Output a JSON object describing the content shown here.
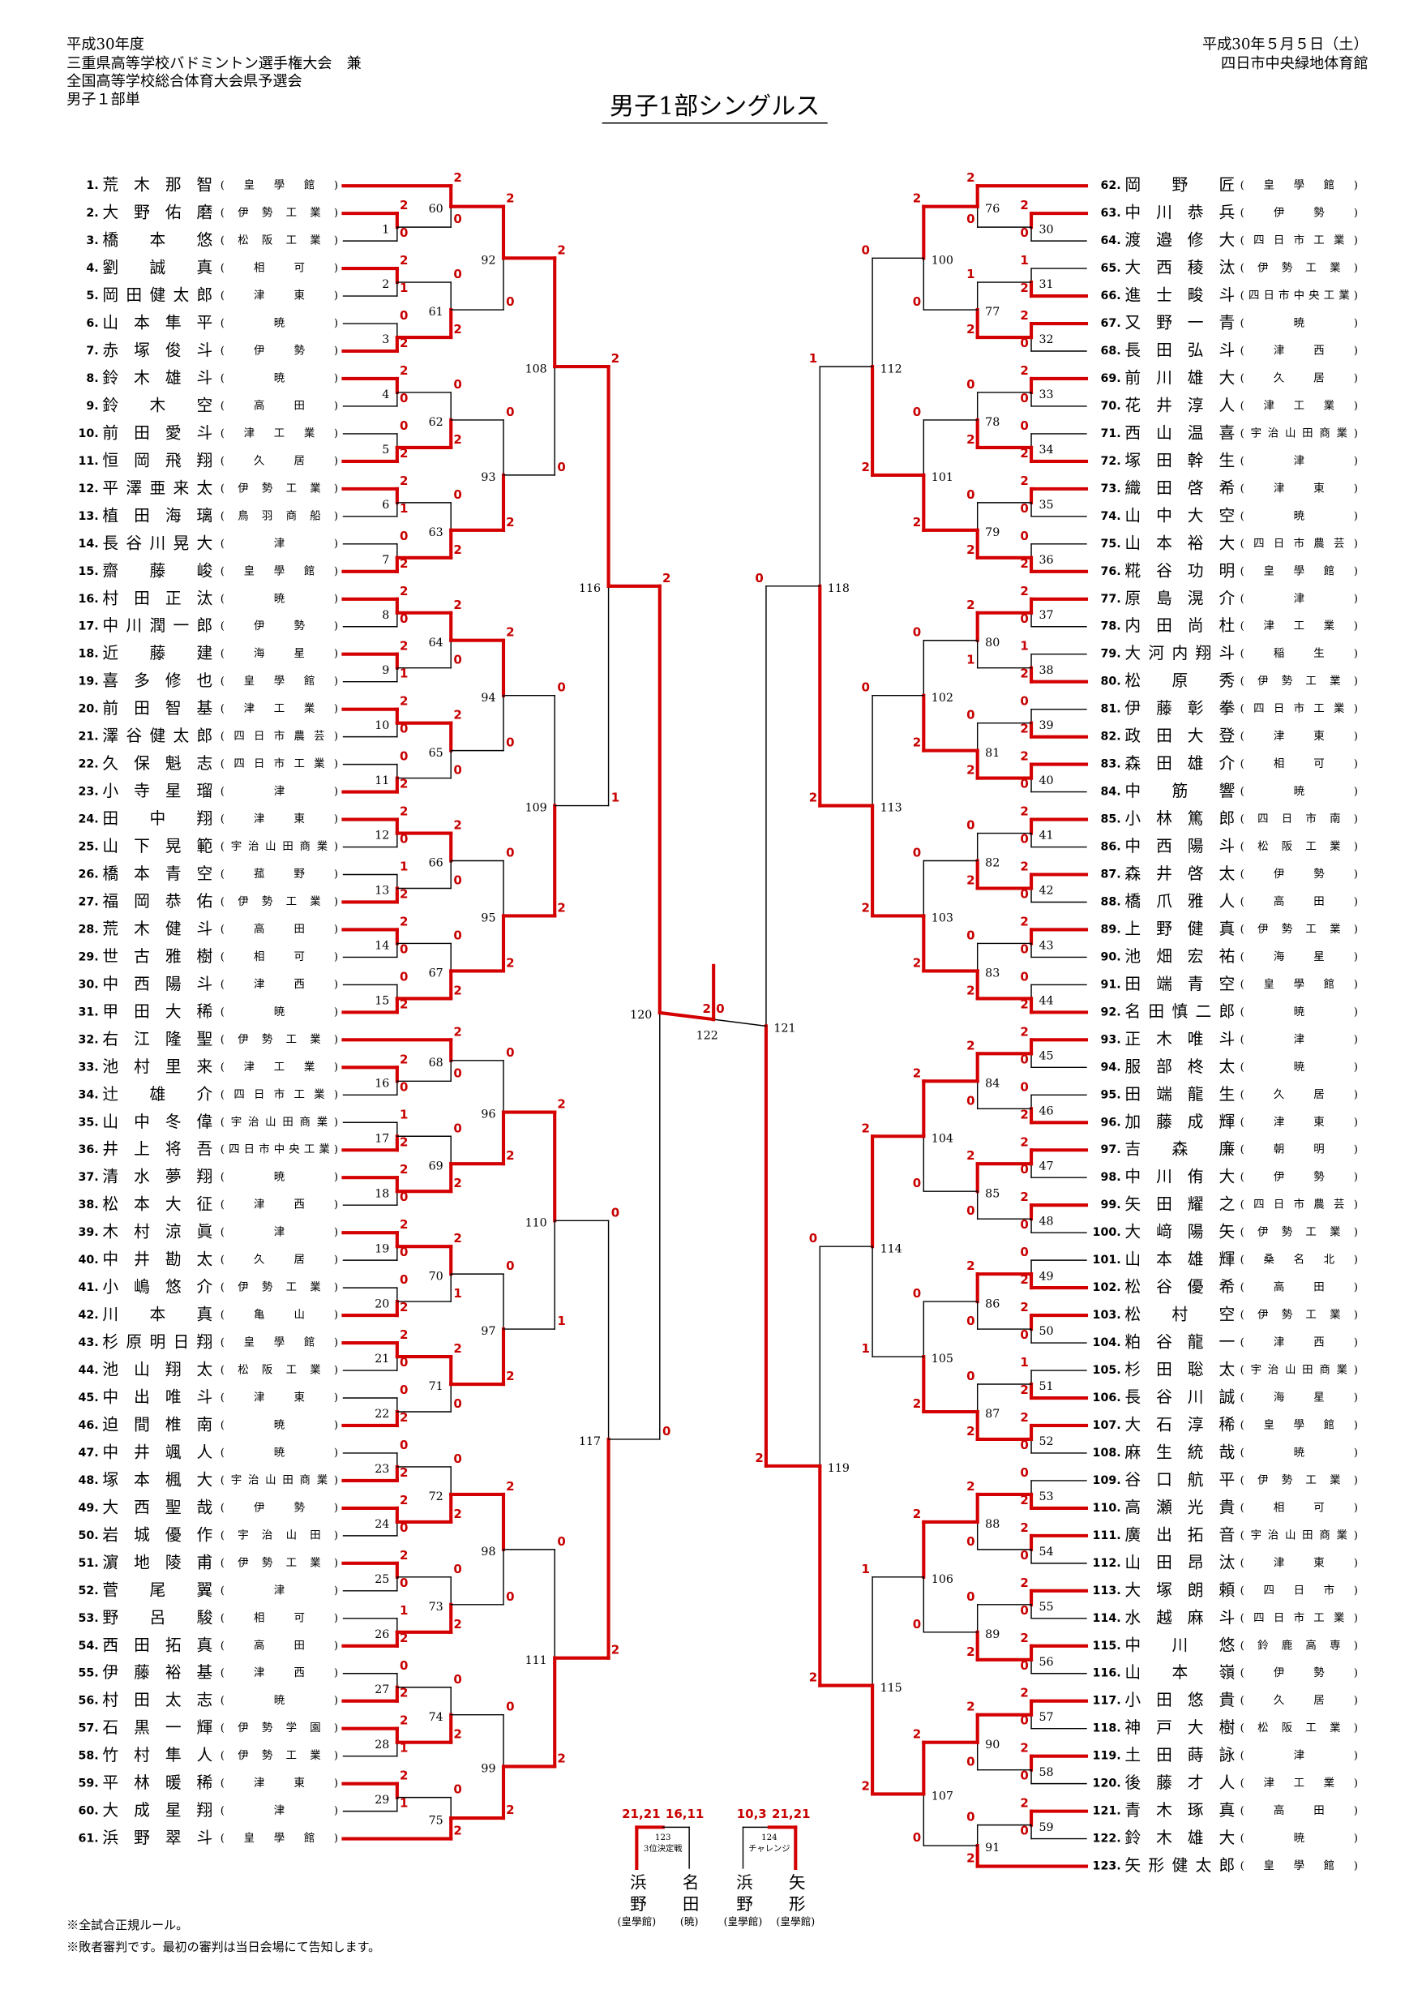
{
  "header": {
    "lines": [
      "平成30年度",
      "三重県高等学校バドミントン選手権大会　兼",
      "全国高等学校総合体育大会県予選会",
      "男子１部単"
    ],
    "date": "平成30年５月５日（土）",
    "venue": "四日市中央緑地体育館",
    "title": "男子1部シングルス"
  },
  "players": [
    [
      "1.",
      "荒木那智",
      "(皇學館)"
    ],
    [
      "2.",
      "大野佑磨",
      "(伊勢工業)"
    ],
    [
      "3.",
      "橋本悠",
      "(松阪工業)"
    ],
    [
      "4.",
      "劉誠真",
      "(相可)"
    ],
    [
      "5.",
      "岡田健太郎",
      "(津東)"
    ],
    [
      "6.",
      "山本隼平",
      "(暁)"
    ],
    [
      "7.",
      "赤塚俊斗",
      "(伊勢)"
    ],
    [
      "8.",
      "鈴木雄斗",
      "(暁)"
    ],
    [
      "9.",
      "鈴木空",
      "(高田)"
    ],
    [
      "10.",
      "前田愛斗",
      "(津工業)"
    ],
    [
      "11.",
      "恒岡飛翔",
      "(久居)"
    ],
    [
      "12.",
      "平澤亜来太",
      "(伊勢工業)"
    ],
    [
      "13.",
      "植田海璃",
      "(鳥羽商船)"
    ],
    [
      "14.",
      "長谷川晃大",
      "(津)"
    ],
    [
      "15.",
      "齋藤峻",
      "(皇學館)"
    ],
    [
      "16.",
      "村田正汰",
      "(暁)"
    ],
    [
      "17.",
      "中川潤一郎",
      "(伊勢)"
    ],
    [
      "18.",
      "近藤建",
      "(海星)"
    ],
    [
      "19.",
      "喜多修也",
      "(皇學館)"
    ],
    [
      "20.",
      "前田智基",
      "(津工業)"
    ],
    [
      "21.",
      "澤谷健太郎",
      "(四日市農芸)"
    ],
    [
      "22.",
      "久保魁志",
      "(四日市工業)"
    ],
    [
      "23.",
      "小寺星瑠",
      "(津)"
    ],
    [
      "24.",
      "田中翔",
      "(津東)"
    ],
    [
      "25.",
      "山下晃範",
      "(宇治山田商業)"
    ],
    [
      "26.",
      "橋本青空",
      "(菰野)"
    ],
    [
      "27.",
      "福岡恭佑",
      "(伊勢工業)"
    ],
    [
      "28.",
      "荒木健斗",
      "(高田)"
    ],
    [
      "29.",
      "世古雅樹",
      "(相可)"
    ],
    [
      "30.",
      "中西陽斗",
      "(津西)"
    ],
    [
      "31.",
      "甲田大稀",
      "(暁)"
    ],
    [
      "32.",
      "右江隆聖",
      "(伊勢工業)"
    ],
    [
      "33.",
      "池村里来",
      "(津工業)"
    ],
    [
      "34.",
      "辻雄介",
      "(四日市工業)"
    ],
    [
      "35.",
      "山中冬偉",
      "(宇治山田商業)"
    ],
    [
      "36.",
      "井上将吾",
      "(四日市中央工業)"
    ],
    [
      "37.",
      "清水夢翔",
      "(暁)"
    ],
    [
      "38.",
      "松本大征",
      "(津西)"
    ],
    [
      "39.",
      "木村涼眞",
      "(津)"
    ],
    [
      "40.",
      "中井勘太",
      "(久居)"
    ],
    [
      "41.",
      "小嶋悠介",
      "(伊勢工業)"
    ],
    [
      "42.",
      "川本真",
      "(亀山)"
    ],
    [
      "43.",
      "杉原明日翔",
      "(皇學館)"
    ],
    [
      "44.",
      "池山翔太",
      "(松阪工業)"
    ],
    [
      "45.",
      "中出唯斗",
      "(津東)"
    ],
    [
      "46.",
      "迫間椎南",
      "(暁)"
    ],
    [
      "47.",
      "中井颯人",
      "(暁)"
    ],
    [
      "48.",
      "塚本楓大",
      "(宇治山田商業)"
    ],
    [
      "49.",
      "大西聖哉",
      "(伊勢)"
    ],
    [
      "50.",
      "岩城優作",
      "(宇治山田)"
    ],
    [
      "51.",
      "濵地陵甫",
      "(伊勢工業)"
    ],
    [
      "52.",
      "菅尾翼",
      "(津)"
    ],
    [
      "53.",
      "野呂駿",
      "(相可)"
    ],
    [
      "54.",
      "西田拓真",
      "(高田)"
    ],
    [
      "55.",
      "伊藤裕基",
      "(津西)"
    ],
    [
      "56.",
      "村田太志",
      "(暁)"
    ],
    [
      "57.",
      "石黒一輝",
      "(伊勢学園)"
    ],
    [
      "58.",
      "竹村隼人",
      "(伊勢工業)"
    ],
    [
      "59.",
      "平林暖稀",
      "(津東)"
    ],
    [
      "60.",
      "大成星翔",
      "(津)"
    ],
    [
      "61.",
      "浜野翠斗",
      "(皇學館)"
    ],
    [
      "62.",
      "岡野匠",
      "(皇學館)"
    ],
    [
      "63.",
      "中川恭兵",
      "(伊勢)"
    ],
    [
      "64.",
      "渡邉修大",
      "(四日市工業)"
    ],
    [
      "65.",
      "大西稜汰",
      "(伊勢工業)"
    ],
    [
      "66.",
      "進士畯斗",
      "(四日市中央工業)"
    ],
    [
      "67.",
      "又野一青",
      "(暁)"
    ],
    [
      "68.",
      "長田弘斗",
      "(津西)"
    ],
    [
      "69.",
      "前川雄大",
      "(久居)"
    ],
    [
      "70.",
      "花井淳人",
      "(津工業)"
    ],
    [
      "71.",
      "西山温喜",
      "(宇治山田商業)"
    ],
    [
      "72.",
      "塚田幹生",
      "(津)"
    ],
    [
      "73.",
      "織田啓希",
      "(津東)"
    ],
    [
      "74.",
      "山中大空",
      "(暁)"
    ],
    [
      "75.",
      "山本裕大",
      "(四日市農芸)"
    ],
    [
      "76.",
      "糀谷功明",
      "(皇學館)"
    ],
    [
      "77.",
      "原島滉介",
      "(津)"
    ],
    [
      "78.",
      "内田尚杜",
      "(津工業)"
    ],
    [
      "79.",
      "大河内翔斗",
      "(稲生)"
    ],
    [
      "80.",
      "松原秀",
      "(伊勢工業)"
    ],
    [
      "81.",
      "伊藤彰拳",
      "(四日市工業)"
    ],
    [
      "82.",
      "政田大登",
      "(津東)"
    ],
    [
      "83.",
      "森田雄介",
      "(相可)"
    ],
    [
      "84.",
      "中筋響",
      "(暁)"
    ],
    [
      "85.",
      "小林篤郎",
      "(四日市南)"
    ],
    [
      "86.",
      "中西陽斗",
      "(松阪工業)"
    ],
    [
      "87.",
      "森井啓太",
      "(伊勢)"
    ],
    [
      "88.",
      "橋爪雅人",
      "(高田)"
    ],
    [
      "89.",
      "上野健真",
      "(伊勢工業)"
    ],
    [
      "90.",
      "池畑宏祐",
      "(海星)"
    ],
    [
      "91.",
      "田端青空",
      "(皇學館)"
    ],
    [
      "92.",
      "名田慎二郎",
      "(暁)"
    ],
    [
      "93.",
      "正木唯斗",
      "(津)"
    ],
    [
      "94.",
      "服部柊太",
      "(暁)"
    ],
    [
      "95.",
      "田端龍生",
      "(久居)"
    ],
    [
      "96.",
      "加藤成輝",
      "(津東)"
    ],
    [
      "97.",
      "吉森廉",
      "(朝明)"
    ],
    [
      "98.",
      "中川侑大",
      "(伊勢)"
    ],
    [
      "99.",
      "矢田耀之",
      "(四日市農芸)"
    ],
    [
      "100.",
      "大﨑陽矢",
      "(伊勢工業)"
    ],
    [
      "101.",
      "山本雄輝",
      "(桑名北)"
    ],
    [
      "102.",
      "松谷優希",
      "(高田)"
    ],
    [
      "103.",
      "松村空",
      "(伊勢工業)"
    ],
    [
      "104.",
      "粕谷龍一",
      "(津西)"
    ],
    [
      "105.",
      "杉田聡太",
      "(宇治山田商業)"
    ],
    [
      "106.",
      "長谷川誠",
      "(海星)"
    ],
    [
      "107.",
      "大石淳稀",
      "(皇學館)"
    ],
    [
      "108.",
      "麻生統哉",
      "(暁)"
    ],
    [
      "109.",
      "谷口航平",
      "(伊勢工業)"
    ],
    [
      "110.",
      "高瀬光貴",
      "(相可)"
    ],
    [
      "111.",
      "廣出拓音",
      "(宇治山田商業)"
    ],
    [
      "112.",
      "山田昂汰",
      "(津東)"
    ],
    [
      "113.",
      "大塚朗頼",
      "(四日市)"
    ],
    [
      "114.",
      "水越麻斗",
      "(四日市工業)"
    ],
    [
      "115.",
      "中川悠",
      "(鈴鹿高専)"
    ],
    [
      "116.",
      "山本嶺",
      "(伊勢)"
    ],
    [
      "117.",
      "小田悠貴",
      "(久居)"
    ],
    [
      "118.",
      "神戸大樹",
      "(松阪工業)"
    ],
    [
      "119.",
      "土田蒔詠",
      "(津)"
    ],
    [
      "120.",
      "後藤才人",
      "(津工業)"
    ],
    [
      "121.",
      "青木琢真",
      "(高田)"
    ],
    [
      "122.",
      "鈴木雄大",
      "(暁)"
    ],
    [
      "123.",
      "矢形健太郎",
      "(皇學館)"
    ]
  ],
  "matches": [
    [
      1,
      2,
      0
    ],
    [
      2,
      2,
      1
    ],
    [
      3,
      0,
      2
    ],
    [
      4,
      2,
      0
    ],
    [
      5,
      0,
      2
    ],
    [
      6,
      2,
      1
    ],
    [
      7,
      0,
      2
    ],
    [
      8,
      2,
      0
    ],
    [
      9,
      2,
      1
    ],
    [
      10,
      2,
      0
    ],
    [
      11,
      0,
      2
    ],
    [
      12,
      2,
      0
    ],
    [
      13,
      1,
      2
    ],
    [
      14,
      2,
      0
    ],
    [
      15,
      0,
      2
    ],
    [
      16,
      2,
      0
    ],
    [
      17,
      1,
      2
    ],
    [
      18,
      2,
      0
    ],
    [
      19,
      2,
      0
    ],
    [
      20,
      0,
      2
    ],
    [
      21,
      2,
      0
    ],
    [
      22,
      0,
      2
    ],
    [
      23,
      0,
      2
    ],
    [
      24,
      2,
      0
    ],
    [
      25,
      2,
      0
    ],
    [
      26,
      1,
      2
    ],
    [
      27,
      0,
      2
    ],
    [
      28,
      2,
      1
    ],
    [
      29,
      2,
      1
    ],
    [
      30,
      2,
      0
    ],
    [
      31,
      1,
      2
    ],
    [
      32,
      2,
      0
    ],
    [
      33,
      2,
      0
    ],
    [
      34,
      0,
      2
    ],
    [
      35,
      2,
      0
    ],
    [
      36,
      0,
      2
    ],
    [
      37,
      2,
      0
    ],
    [
      38,
      1,
      2
    ],
    [
      39,
      0,
      2
    ],
    [
      40,
      2,
      0
    ],
    [
      41,
      2,
      0
    ],
    [
      42,
      2,
      0
    ],
    [
      43,
      2,
      0
    ],
    [
      44,
      0,
      2
    ],
    [
      45,
      2,
      0
    ],
    [
      46,
      0,
      2
    ],
    [
      47,
      2,
      0
    ],
    [
      48,
      2,
      0
    ],
    [
      49,
      0,
      2
    ],
    [
      50,
      2,
      0
    ],
    [
      51,
      1,
      2
    ],
    [
      52,
      2,
      0
    ],
    [
      53,
      0,
      2
    ],
    [
      54,
      2,
      0
    ],
    [
      55,
      2,
      0
    ],
    [
      56,
      2,
      0
    ],
    [
      57,
      2,
      0
    ],
    [
      58,
      2,
      0
    ],
    [
      59,
      2,
      0
    ],
    [
      60,
      2,
      0
    ],
    [
      61,
      0,
      2
    ],
    [
      62,
      0,
      2
    ],
    [
      63,
      0,
      2
    ],
    [
      64,
      2,
      0
    ],
    [
      65,
      2,
      0
    ],
    [
      66,
      2,
      0
    ],
    [
      67,
      0,
      2
    ],
    [
      68,
      2,
      0
    ],
    [
      69,
      0,
      2
    ],
    [
      70,
      2,
      1
    ],
    [
      71,
      2,
      0
    ],
    [
      72,
      0,
      2
    ],
    [
      73,
      0,
      2
    ],
    [
      74,
      0,
      2
    ],
    [
      75,
      0,
      2
    ],
    [
      76,
      2,
      0
    ],
    [
      77,
      1,
      2
    ],
    [
      78,
      0,
      2
    ],
    [
      79,
      0,
      2
    ],
    [
      80,
      2,
      1
    ],
    [
      81,
      0,
      2
    ],
    [
      82,
      0,
      2
    ],
    [
      83,
      0,
      2
    ],
    [
      84,
      2,
      0
    ],
    [
      85,
      2,
      0
    ],
    [
      86,
      2,
      0
    ],
    [
      87,
      0,
      2
    ],
    [
      88,
      2,
      0
    ],
    [
      89,
      0,
      2
    ],
    [
      90,
      2,
      0
    ],
    [
      91,
      0,
      2
    ],
    [
      92,
      2,
      0
    ],
    [
      93,
      0,
      2
    ],
    [
      94,
      2,
      0
    ],
    [
      95,
      0,
      2
    ],
    [
      96,
      0,
      2
    ],
    [
      97,
      0,
      2
    ],
    [
      98,
      2,
      0
    ],
    [
      99,
      0,
      2
    ],
    [
      100,
      2,
      0
    ],
    [
      101,
      0,
      2
    ],
    [
      102,
      0,
      2
    ],
    [
      103,
      0,
      2
    ],
    [
      104,
      2,
      0
    ],
    [
      105,
      0,
      2
    ],
    [
      106,
      2,
      0
    ],
    [
      107,
      2,
      0
    ],
    [
      108,
      2,
      0
    ],
    [
      109,
      0,
      2
    ],
    [
      110,
      2,
      1
    ],
    [
      111,
      0,
      2
    ],
    [
      112,
      0,
      2
    ],
    [
      113,
      0,
      2
    ],
    [
      114,
      2,
      1
    ],
    [
      115,
      1,
      2
    ],
    [
      116,
      2,
      1
    ],
    [
      117,
      0,
      2
    ],
    [
      118,
      1,
      2
    ],
    [
      119,
      0,
      2
    ],
    [
      120,
      2,
      0
    ],
    [
      121,
      0,
      2
    ],
    [
      122,
      2,
      0
    ]
  ],
  "playoffs": [
    {
      "left_scores": "21,21",
      "right_scores": "16,11",
      "no": "123",
      "label": "3位決定戦",
      "left_name": "浜野",
      "left_school": "(皇學館)",
      "right_name": "名田",
      "right_school": "(暁)",
      "winner": "left"
    },
    {
      "left_scores": "10,3",
      "right_scores": "21,21",
      "no": "124",
      "label": "チャレンジ",
      "left_name": "浜野",
      "left_school": "(皇學館)",
      "right_name": "矢形",
      "right_school": "(皇學館)",
      "winner": "right"
    }
  ],
  "notes": [
    "※全試合正規ルール。",
    "※敗者審判です。最初の審判は当日会場にて告知します。"
  ]
}
